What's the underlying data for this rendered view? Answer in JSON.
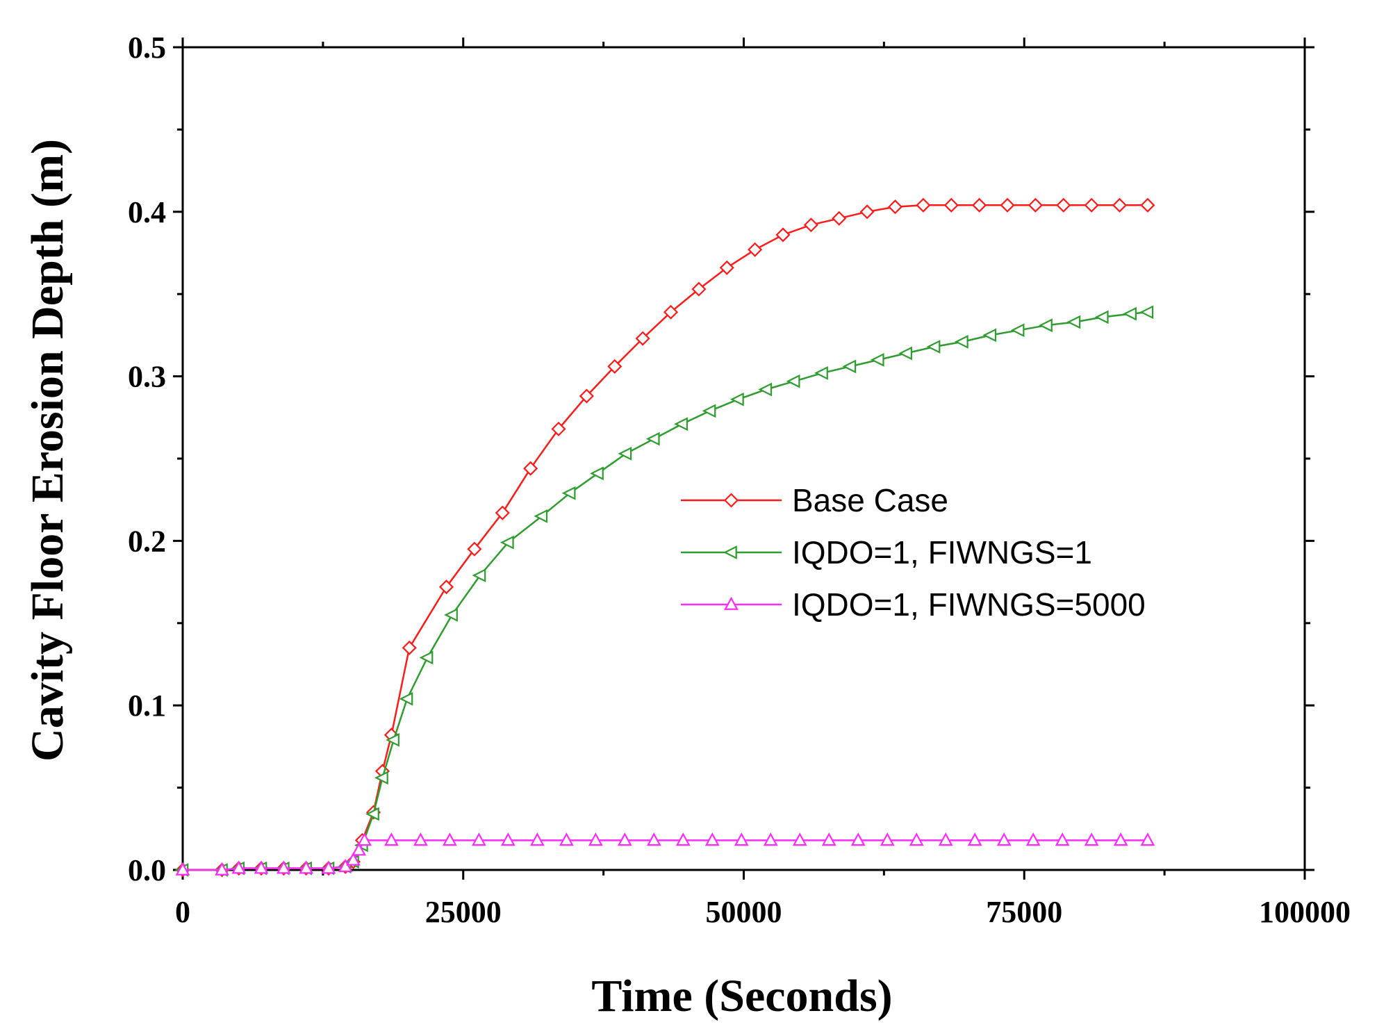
{
  "chart_data": {
    "type": "line",
    "title": "",
    "xlabel": "Time (Seconds)",
    "ylabel": "Cavity Floor Erosion Depth (m)",
    "xlim": [
      0,
      100000
    ],
    "ylim": [
      0,
      0.5
    ],
    "xticks": [
      0,
      25000,
      50000,
      75000,
      100000
    ],
    "xtick_labels": [
      "0",
      "25000",
      "50000",
      "75000",
      "100000"
    ],
    "yticks": [
      0,
      0.1,
      0.2,
      0.3,
      0.4,
      0.5
    ],
    "ytick_labels": [
      "0.0",
      "0.1",
      "0.2",
      "0.3",
      "0.4",
      "0.5"
    ],
    "grid": false,
    "legend_position": "center-right",
    "series": [
      {
        "name": "Base Case",
        "color": "#ff1a1a",
        "marker": "diamond",
        "x": [
          0,
          3500,
          5000,
          7000,
          9000,
          11000,
          13000,
          14500,
          15200,
          16000,
          17000,
          17800,
          18600,
          20200,
          23500,
          26000,
          28500,
          31000,
          33500,
          36000,
          38500,
          41000,
          43500,
          46000,
          48500,
          51000,
          53500,
          56000,
          58500,
          61000,
          63500,
          66000,
          68500,
          71000,
          73500,
          76000,
          78500,
          81000,
          83500,
          86000
        ],
        "y": [
          0,
          0,
          0.001,
          0.001,
          0.001,
          0.001,
          0.001,
          0.002,
          0.005,
          0.018,
          0.035,
          0.06,
          0.082,
          0.135,
          0.172,
          0.195,
          0.217,
          0.244,
          0.268,
          0.288,
          0.306,
          0.323,
          0.339,
          0.353,
          0.366,
          0.377,
          0.386,
          0.392,
          0.396,
          0.4,
          0.403,
          0.404,
          0.404,
          0.404,
          0.404,
          0.404,
          0.404,
          0.404,
          0.404,
          0.404
        ]
      },
      {
        "name": "IQDO=1, FIWNGS=1",
        "color": "#2e9c2e",
        "marker": "triangle-left",
        "x": [
          0,
          3500,
          5000,
          7000,
          9000,
          11000,
          13000,
          14500,
          15200,
          16000,
          17000,
          17800,
          18800,
          20000,
          21800,
          24000,
          26500,
          29000,
          32000,
          34500,
          37000,
          39500,
          42000,
          44500,
          47000,
          49500,
          52000,
          54500,
          57000,
          59500,
          62000,
          64500,
          67000,
          69500,
          72000,
          74500,
          77000,
          79500,
          82000,
          84500,
          86000
        ],
        "y": [
          0,
          0,
          0.001,
          0.001,
          0.001,
          0.001,
          0.001,
          0.002,
          0.005,
          0.015,
          0.034,
          0.056,
          0.079,
          0.104,
          0.129,
          0.155,
          0.179,
          0.199,
          0.215,
          0.229,
          0.241,
          0.253,
          0.262,
          0.271,
          0.279,
          0.286,
          0.292,
          0.297,
          0.302,
          0.306,
          0.31,
          0.314,
          0.318,
          0.321,
          0.325,
          0.328,
          0.331,
          0.333,
          0.336,
          0.338,
          0.339
        ]
      },
      {
        "name": "IQDO=1, FIWNGS=5000",
        "color": "#ff2aff",
        "marker": "triangle-up",
        "x": [
          0,
          3500,
          5000,
          7000,
          9000,
          11000,
          13000,
          14500,
          15200,
          15700,
          16200,
          18600,
          21200,
          23800,
          26400,
          29000,
          31600,
          34200,
          36800,
          39400,
          42000,
          44600,
          47200,
          49800,
          52400,
          55000,
          57600,
          60200,
          62800,
          65400,
          68000,
          70600,
          73200,
          75800,
          78400,
          81000,
          83600,
          86000
        ],
        "y": [
          0,
          0,
          0.001,
          0.001,
          0.001,
          0.001,
          0.001,
          0.002,
          0.006,
          0.012,
          0.018,
          0.018,
          0.018,
          0.018,
          0.018,
          0.018,
          0.018,
          0.018,
          0.018,
          0.018,
          0.018,
          0.018,
          0.018,
          0.018,
          0.018,
          0.018,
          0.018,
          0.018,
          0.018,
          0.018,
          0.018,
          0.018,
          0.018,
          0.018,
          0.018,
          0.018,
          0.018,
          0.018
        ]
      }
    ]
  }
}
